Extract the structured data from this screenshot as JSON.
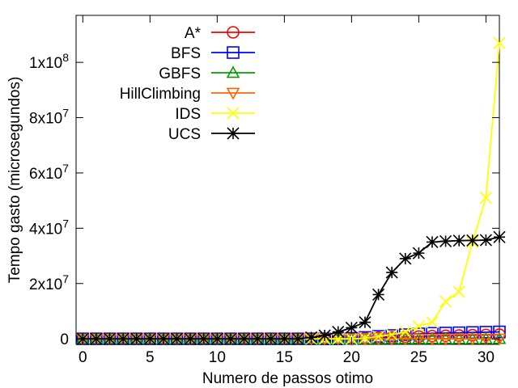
{
  "chart_data": {
    "type": "line",
    "xlabel": "Numero de passos otimo",
    "ylabel": "Tempo gasto (microsegundos)",
    "xlim": [
      -0.5,
      31
    ],
    "ylim": [
      -2000000,
      117000000
    ],
    "xticks": [
      0,
      5,
      10,
      15,
      20,
      25,
      30
    ],
    "yticks": [
      {
        "value": 0,
        "mant": "0",
        "exp": ""
      },
      {
        "value": 20000000,
        "mant": "2x10",
        "exp": "7"
      },
      {
        "value": 40000000,
        "mant": "4x10",
        "exp": "7"
      },
      {
        "value": 60000000,
        "mant": "6x10",
        "exp": "7"
      },
      {
        "value": 80000000,
        "mant": "8x10",
        "exp": "7"
      },
      {
        "value": 100000000,
        "mant": "1x10",
        "exp": "8"
      }
    ],
    "grid": false,
    "legend_position": "top-left",
    "x": [
      0,
      1,
      2,
      3,
      4,
      5,
      6,
      7,
      8,
      9,
      10,
      11,
      12,
      13,
      14,
      15,
      16,
      17,
      18,
      19,
      20,
      21,
      22,
      23,
      24,
      25,
      26,
      27,
      28,
      29,
      30,
      31
    ],
    "series": [
      {
        "name": "A*",
        "marker": "circle",
        "color": "#ff0000",
        "values": [
          0,
          0,
          0,
          0,
          0,
          0,
          0,
          0,
          0,
          0,
          0,
          0,
          0,
          0,
          0,
          0,
          0,
          0,
          0,
          0,
          0,
          200000,
          400000,
          500000,
          700000,
          800000,
          1000000,
          1100000,
          1200000,
          1300000,
          1400000,
          1500000
        ]
      },
      {
        "name": "BFS",
        "marker": "square",
        "color": "#0000ff",
        "values": [
          0,
          0,
          0,
          0,
          0,
          0,
          0,
          0,
          0,
          0,
          0,
          0,
          0,
          0,
          0,
          0,
          0,
          0,
          0,
          0,
          200000,
          500000,
          900000,
          1200000,
          1500000,
          1800000,
          2000000,
          2100000,
          2200000,
          2300000,
          2400000,
          2500000
        ]
      },
      {
        "name": "GBFS",
        "marker": "triangle-up",
        "color": "#00a000",
        "values": [
          0,
          0,
          0,
          0,
          0,
          0,
          0,
          0,
          0,
          0,
          0,
          0,
          0,
          0,
          0,
          0,
          0,
          0,
          0,
          0,
          0,
          0,
          0,
          0,
          0,
          0,
          0,
          0,
          0,
          0,
          0,
          0
        ]
      },
      {
        "name": "HillClimbing",
        "marker": "triangle-down",
        "color": "#ff6600",
        "values": [
          0,
          0,
          0,
          0,
          0,
          0,
          0,
          0,
          0,
          0,
          0,
          0,
          0,
          0,
          0,
          0,
          0,
          0,
          0,
          0,
          0,
          0,
          0,
          0,
          0,
          0,
          0,
          0,
          0,
          0,
          0,
          0
        ]
      },
      {
        "name": "IDS",
        "marker": "x",
        "color": "#ffff00",
        "values": [
          0,
          0,
          0,
          0,
          0,
          0,
          0,
          0,
          0,
          0,
          0,
          0,
          0,
          0,
          0,
          0,
          0,
          0,
          0,
          0,
          0,
          300000,
          800000,
          1500000,
          2500000,
          4500000,
          6000000,
          13500000,
          17000000,
          35000000,
          51000000,
          107000000
        ]
      },
      {
        "name": "UCS",
        "marker": "star",
        "color": "#000000",
        "values": [
          0,
          0,
          0,
          0,
          0,
          0,
          0,
          0,
          0,
          0,
          0,
          0,
          0,
          0,
          0,
          0,
          0,
          500000,
          1200000,
          2500000,
          4000000,
          6000000,
          16000000,
          24000000,
          29000000,
          31000000,
          35000000,
          35300000,
          35500000,
          35600000,
          35700000,
          36800000
        ]
      }
    ]
  }
}
